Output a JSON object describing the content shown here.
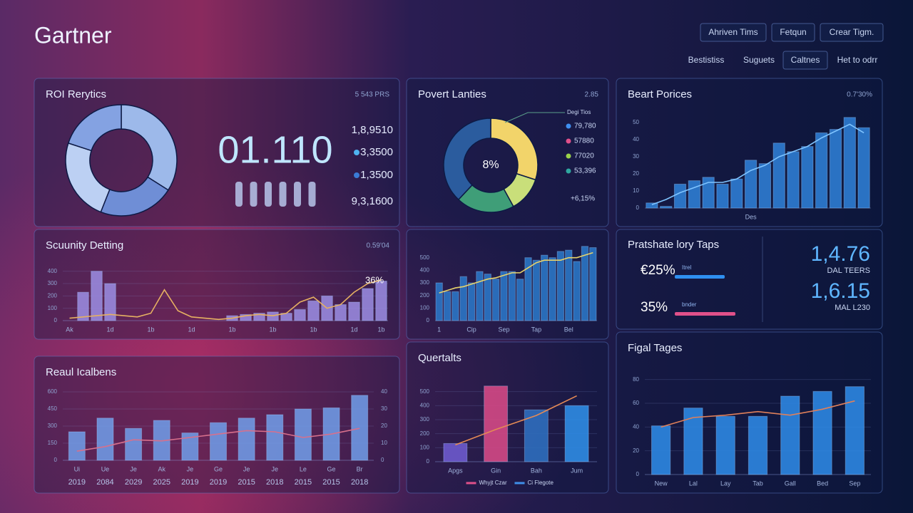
{
  "header": {
    "title": "Gartner",
    "buttons": [
      "Ahriven Tims",
      "Fetqun",
      "Crear Tigm."
    ],
    "tabs": [
      "Bestistiss",
      "Suguets",
      "Caltnes",
      "Het to odrr"
    ]
  },
  "chart_data": [
    {
      "type": "donut",
      "title": "ROI Rerytics",
      "corner": "5 543 PRS",
      "values": [
        34,
        22,
        24,
        20
      ],
      "colors": [
        "#9db9ea",
        "#6f8ed6",
        "#bcd0f3",
        "#84a2e2"
      ],
      "big_number": "01.110",
      "stats": [
        "1,8,9510",
        "3,3500",
        "1,3500",
        "9,3,1600"
      ],
      "stat_dots": [
        null,
        "#4fb3f0",
        "#3a7bd5",
        null
      ]
    },
    {
      "type": "donut",
      "title": "Povert Lanties",
      "corner": "2.85",
      "values": [
        30,
        12,
        20,
        38
      ],
      "colors": [
        "#f2d46a",
        "#c9df7a",
        "#3f9e78",
        "#2b5c9e"
      ],
      "center_label": "8%",
      "legend_title": "Degi Tios",
      "legend": [
        "79,780",
        "57880",
        "77020",
        "53,396"
      ],
      "legend_colors": [
        "#3f8ff0",
        "#e0508a",
        "#9ad24a",
        "#2fa8a0"
      ],
      "footnote": "+6,15%"
    },
    {
      "type": "bar",
      "title": "Beart Porices",
      "corner": "0.7'30%",
      "categories": [
        null,
        null,
        null,
        null,
        null,
        null,
        null,
        "Des",
        null,
        null,
        null,
        null,
        null,
        null,
        null,
        null
      ],
      "ylim": [
        0,
        55
      ],
      "yticks": [
        0,
        10,
        20,
        30,
        40,
        50
      ],
      "grid": false,
      "series": [
        {
          "kind": "bar",
          "color": "#2f7fd6",
          "values": [
            3,
            1,
            14,
            16,
            18,
            14,
            17,
            28,
            26,
            38,
            33,
            36,
            44,
            46,
            53,
            47
          ]
        },
        {
          "kind": "line",
          "color": "#7fc4ff",
          "values": [
            2,
            5,
            9,
            12,
            15,
            15,
            17,
            22,
            25,
            30,
            33,
            36,
            41,
            45,
            49,
            44
          ]
        }
      ]
    },
    {
      "type": "bar",
      "title": "Scuunity Detting",
      "corner": "0.59'04",
      "annotation": "36%",
      "categories": [
        "Ak",
        null,
        null,
        "1d",
        null,
        null,
        "1b",
        null,
        null,
        "1d",
        null,
        null,
        "1b",
        null,
        null,
        "1b",
        null,
        null,
        "1b",
        null,
        null,
        "1d",
        null,
        "1b"
      ],
      "ylim": [
        0,
        450
      ],
      "yticks": [
        0,
        100,
        200,
        300,
        400
      ],
      "grid": true,
      "series": [
        {
          "kind": "bar",
          "color": "#9a8be0",
          "values": [
            0,
            230,
            400,
            300,
            0,
            0,
            0,
            0,
            0,
            0,
            0,
            0,
            40,
            50,
            60,
            70,
            60,
            90,
            160,
            200,
            130,
            150,
            260,
            320
          ]
        },
        {
          "kind": "line",
          "color": "#e5b062",
          "values": [
            20,
            30,
            40,
            50,
            40,
            30,
            60,
            250,
            80,
            30,
            20,
            10,
            20,
            40,
            50,
            40,
            60,
            150,
            190,
            100,
            130,
            230,
            300,
            330
          ]
        }
      ]
    },
    {
      "type": "bar",
      "categories": [
        "1",
        null,
        null,
        null,
        "Cip",
        null,
        null,
        null,
        "Sep",
        null,
        null,
        null,
        "Tap",
        null,
        null,
        null,
        "Bel",
        null,
        null,
        null
      ],
      "ylim": [
        0,
        600
      ],
      "yticks": [
        0,
        100,
        200,
        300,
        400,
        500
      ],
      "grid": false,
      "series": [
        {
          "kind": "bar",
          "color": "#2b78c8",
          "values": [
            300,
            230,
            230,
            350,
            300,
            390,
            370,
            330,
            390,
            390,
            330,
            500,
            480,
            520,
            500,
            550,
            560,
            470,
            590,
            580
          ]
        },
        {
          "kind": "line",
          "color": "#e8d36a",
          "values": [
            220,
            240,
            260,
            270,
            290,
            310,
            330,
            340,
            360,
            380,
            380,
            420,
            460,
            480,
            480,
            480,
            500,
            500,
            520,
            540
          ]
        }
      ]
    },
    {
      "type": "bar",
      "title": "Reaul Icalbens",
      "categories": [
        "Ui",
        "Ue",
        "Je",
        "Ak",
        "Je",
        "Ge",
        "Je",
        "Je",
        "Le",
        "Ge",
        "Br"
      ],
      "years": [
        "2019",
        "2084",
        "2029",
        "2025",
        "2019",
        "2019",
        "2015",
        "2018",
        "2015",
        "2015",
        "2018"
      ],
      "ylim": [
        0,
        600
      ],
      "yticks": [
        0,
        150,
        300,
        450,
        600
      ],
      "y2lim": [
        0,
        40
      ],
      "y2ticks": [
        0,
        10,
        20,
        30,
        40
      ],
      "grid": true,
      "series": [
        {
          "kind": "bar",
          "color": "#6f9be6",
          "values": [
            250,
            370,
            280,
            350,
            240,
            330,
            370,
            400,
            450,
            460,
            570
          ]
        },
        {
          "kind": "line",
          "color": "#d7708c",
          "values": [
            80,
            120,
            180,
            170,
            200,
            230,
            260,
            250,
            200,
            230,
            280
          ]
        }
      ]
    },
    {
      "type": "bar",
      "title": "Quertalts",
      "categories": [
        "Apgs",
        "Gin",
        "Bah",
        "Jum"
      ],
      "ylim": [
        0,
        600
      ],
      "yticks": [
        0,
        100,
        200,
        300,
        400,
        500
      ],
      "grid": true,
      "series": [
        {
          "kind": "bar",
          "name": "Whyjt Czar",
          "color": "#e0508a",
          "colors": [
            "#6e5bd0",
            "#d84a86",
            "#2f6fc0",
            "#2f8ee8"
          ],
          "values": [
            130,
            540,
            370,
            400
          ]
        },
        {
          "kind": "line",
          "name": "Ci Flegote",
          "color": "#3f8fe8",
          "line_color": "#e58a55",
          "values": [
            120,
            230,
            330,
            470
          ]
        }
      ]
    },
    {
      "type": "bar",
      "title": "Figal Tages",
      "categories": [
        "New",
        "Lal",
        "Lay",
        "Tab",
        "Gall",
        "Bed",
        "Sep"
      ],
      "ylim": [
        0,
        90
      ],
      "yticks": [
        0,
        20,
        40,
        60,
        80
      ],
      "grid": true,
      "series": [
        {
          "kind": "bar",
          "color": "#2e8ae6",
          "values": [
            41,
            56,
            49,
            49,
            66,
            70,
            74
          ]
        },
        {
          "kind": "line",
          "color": "#e0805a",
          "values": [
            40,
            48,
            50,
            53,
            50,
            55,
            62
          ]
        }
      ]
    }
  ],
  "kpi": {
    "title": "Pratshate lory Taps",
    "rows": [
      {
        "label": "€25%",
        "tag": "Itrel",
        "value": 70,
        "color": "#2f8ff0"
      },
      {
        "label": "35%",
        "tag": "bnder",
        "value": 85,
        "color": "#e0508a"
      }
    ],
    "figures": [
      {
        "value": "1,4.76",
        "caption": "DAL TEERS"
      },
      {
        "value": "1,6.15",
        "caption": "MAL L230"
      }
    ]
  }
}
